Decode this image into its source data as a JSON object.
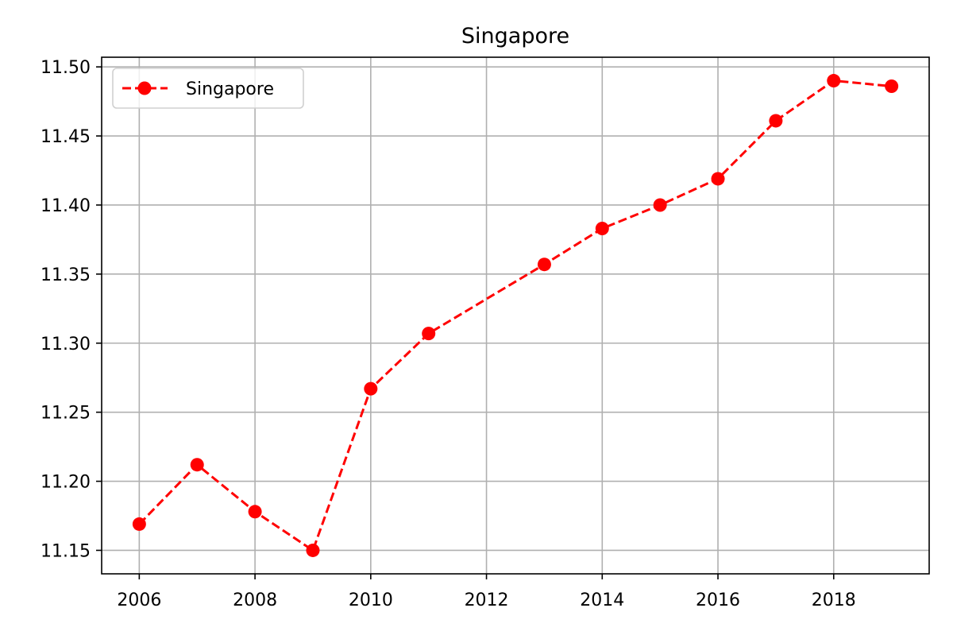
{
  "chart_data": {
    "type": "line",
    "title": "Singapore",
    "xlabel": "",
    "ylabel": "",
    "xlim": [
      2005.35,
      2019.65
    ],
    "ylim": [
      11.133,
      11.507
    ],
    "x_ticks": [
      "2006",
      "2008",
      "2010",
      "2012",
      "2014",
      "2016",
      "2018"
    ],
    "y_ticks": [
      "11.15",
      "11.20",
      "11.25",
      "11.30",
      "11.35",
      "11.40",
      "11.45",
      "11.50"
    ],
    "grid": true,
    "legend_position": "upper-left",
    "series": [
      {
        "name": "Singapore",
        "color": "#ff0000",
        "line_style": "dashed",
        "marker": "circle",
        "x": [
          2006,
          2007,
          2008,
          2009,
          2010,
          2011,
          2013,
          2014,
          2015,
          2016,
          2017,
          2018,
          2019
        ],
        "y": [
          11.169,
          11.212,
          11.178,
          11.15,
          11.267,
          11.307,
          11.357,
          11.383,
          11.4,
          11.419,
          11.461,
          11.49,
          11.486
        ]
      }
    ]
  }
}
